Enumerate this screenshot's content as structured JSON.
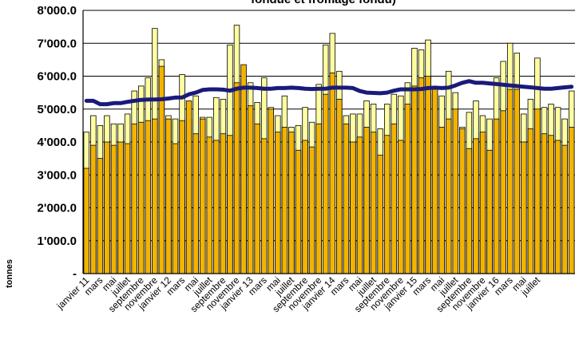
{
  "chart_data": {
    "type": "bar",
    "title": "fondue et fromage fondu)",
    "ylabel": "tonnes",
    "ylim": [
      0,
      8000
    ],
    "yticks": [
      "-",
      "1'000.0",
      "2'000.0",
      "3'000.0",
      "4'000.0",
      "5'000.0",
      "6'000.0",
      "7'000.0",
      "8'000.0"
    ],
    "grid": true,
    "x_tick_labels": [
      "janvier 11",
      "mars",
      "mai",
      "juillet",
      "septembre",
      "novembre",
      "janvier 12",
      "mars",
      "mai",
      "juillet",
      "septembre",
      "novembre",
      "janvier 13",
      "mars",
      "mai",
      "juillet",
      "septembre",
      "novembre",
      "janvier 14",
      "mars",
      "mai",
      "juillet",
      "septembre",
      "novembre",
      "janvier 15",
      "mars",
      "mai",
      "juillet",
      "septembre",
      "novembre",
      "janvier 16",
      "mars",
      "mai",
      "juillet"
    ],
    "series": [
      {
        "type": "bar",
        "values": [
          3200,
          3900,
          3500,
          4000,
          3900,
          4000,
          3950,
          4550,
          4600,
          4650,
          4700,
          6300,
          4700,
          3950,
          4650,
          5250,
          4250,
          4700,
          4150,
          4050,
          4250,
          4200,
          5800,
          6350,
          5100,
          4550,
          4100,
          5000,
          4300,
          4450,
          4300,
          3750,
          4050,
          3850,
          4550,
          5450,
          6100,
          5300,
          4550,
          4000,
          4150,
          4450,
          4300,
          3600,
          4200,
          4550,
          4050,
          5150,
          5700,
          5950,
          6000,
          5600,
          4450,
          4700,
          5000,
          4400,
          3800,
          4100,
          4300,
          3750,
          4700,
          4950,
          5600,
          5600,
          4000,
          4400,
          5000,
          4250,
          4200,
          4050,
          3900,
          4450
        ],
        "color": "#F2B400"
      },
      {
        "type": "bar",
        "values": [
          4300,
          4800,
          4500,
          4800,
          4550,
          4550,
          4850,
          5550,
          5700,
          5950,
          7450,
          6500,
          4800,
          4700,
          6050,
          4700,
          5400,
          4750,
          4750,
          5350,
          5300,
          6950,
          7550,
          5900,
          5800,
          5200,
          5950,
          5050,
          4800,
          5400,
          4450,
          4500,
          5050,
          4600,
          5750,
          6950,
          7300,
          6150,
          4800,
          4850,
          4850,
          5250,
          5150,
          4400,
          5150,
          5450,
          5400,
          5800,
          6850,
          6800,
          7100,
          5450,
          5400,
          6150,
          5500,
          4450,
          4900,
          5250,
          4800,
          4700,
          5950,
          6450,
          7000,
          6700,
          4850,
          5300,
          6550,
          5050,
          5150,
          5050,
          4700,
          5550
        ],
        "color": "#FFFFA0"
      },
      {
        "type": "line",
        "values": [
          5250,
          5250,
          5150,
          5150,
          5180,
          5180,
          5220,
          5250,
          5280,
          5290,
          5290,
          5300,
          5320,
          5350,
          5350,
          5450,
          5500,
          5580,
          5600,
          5600,
          5590,
          5560,
          5620,
          5650,
          5650,
          5640,
          5620,
          5620,
          5640,
          5640,
          5650,
          5640,
          5620,
          5610,
          5620,
          5620,
          5650,
          5650,
          5650,
          5640,
          5550,
          5500,
          5490,
          5480,
          5500,
          5560,
          5600,
          5600,
          5600,
          5610,
          5640,
          5650,
          5640,
          5650,
          5720,
          5800,
          5850,
          5800,
          5800,
          5780,
          5760,
          5740,
          5720,
          5700,
          5680,
          5660,
          5640,
          5620,
          5620,
          5640,
          5660,
          5680
        ],
        "color": "#1A1A7A"
      }
    ]
  }
}
